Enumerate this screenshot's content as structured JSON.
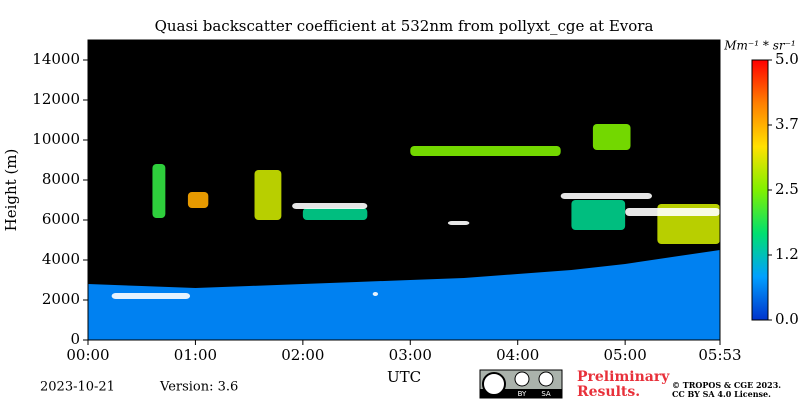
{
  "chart_data": {
    "type": "heatmap",
    "title": "Quasi backscatter coefficient at 532nm from pollyxt_cge at Evora",
    "ylabel": "Height (m)",
    "xlabel": "UTC",
    "xlim": [
      0,
      5.883
    ],
    "xticks": [
      {
        "value": 0,
        "label": "00:00"
      },
      {
        "value": 1,
        "label": "01:00"
      },
      {
        "value": 2,
        "label": "02:00"
      },
      {
        "value": 3,
        "label": "03:00"
      },
      {
        "value": 4,
        "label": "04:00"
      },
      {
        "value": 5,
        "label": "05:00"
      },
      {
        "value": 5.883,
        "label": "05:53"
      }
    ],
    "ylim": [
      0,
      15000
    ],
    "yticks": [
      0,
      2000,
      4000,
      6000,
      8000,
      10000,
      12000,
      14000
    ],
    "background": "#000000",
    "colormap": [
      "#0033cc",
      "#00a0ff",
      "#00e070",
      "#80f000",
      "#ffe000",
      "#ff8000",
      "#ff0000"
    ],
    "over_color": "#ffffff",
    "clim": [
      0,
      5
    ],
    "colorbar_label": "Mm⁻¹ * sr⁻¹",
    "colorbar_ticks": [
      {
        "value": 0,
        "label": "0.0"
      },
      {
        "value": 1.25,
        "label": "1.2"
      },
      {
        "value": 2.5,
        "label": "2.5"
      },
      {
        "value": 3.75,
        "label": "3.7"
      },
      {
        "value": 5,
        "label": "5.0"
      }
    ],
    "aerosol_layer": {
      "x": [
        0,
        0.5,
        1,
        1.5,
        2,
        2.5,
        3,
        3.5,
        4,
        4.5,
        5,
        5.5,
        5.883
      ],
      "top": [
        2800,
        2700,
        2600,
        2700,
        2800,
        2900,
        3000,
        3100,
        3300,
        3500,
        3800,
        4200,
        4500
      ],
      "value": 0.6
    },
    "clouds": [
      {
        "x": [
          0.22,
          0.95
        ],
        "y": [
          2050,
          2350
        ],
        "value": 6
      },
      {
        "x": [
          0.6,
          0.72
        ],
        "y": [
          6100,
          8800
        ],
        "value": 2
      },
      {
        "x": [
          0.93,
          1.12
        ],
        "y": [
          6600,
          7400
        ],
        "value": 3.8
      },
      {
        "x": [
          1.55,
          1.8
        ],
        "y": [
          6000,
          8500
        ],
        "value": 3
      },
      {
        "x": [
          2.0,
          2.6
        ],
        "y": [
          6000,
          6600
        ],
        "value": 1.5
      },
      {
        "x": [
          1.9,
          2.6
        ],
        "y": [
          6550,
          6850
        ],
        "value": 6
      },
      {
        "x": [
          2.65,
          2.7
        ],
        "y": [
          2200,
          2400
        ],
        "value": 6
      },
      {
        "x": [
          3.35,
          3.55
        ],
        "y": [
          5750,
          5950
        ],
        "value": 6
      },
      {
        "x": [
          3.0,
          4.4
        ],
        "y": [
          9200,
          9700
        ],
        "value": 2.5
      },
      {
        "x": [
          4.5,
          5.0
        ],
        "y": [
          5500,
          7000
        ],
        "value": 1.5
      },
      {
        "x": [
          4.4,
          5.25
        ],
        "y": [
          7050,
          7350
        ],
        "value": 6
      },
      {
        "x": [
          4.7,
          5.05
        ],
        "y": [
          9500,
          10800
        ],
        "value": 2.5
      },
      {
        "x": [
          5.3,
          5.883
        ],
        "y": [
          4800,
          6800
        ],
        "value": 3
      },
      {
        "x": [
          5.0,
          5.883
        ],
        "y": [
          6200,
          6600
        ],
        "value": 6
      }
    ]
  },
  "footer": {
    "date": "2023-10-21",
    "version": "Version: 3.6",
    "notice": [
      "Preliminary",
      "Results."
    ],
    "copyright": [
      "© TROPOS & CGE 2023.",
      "CC BY SA 4.0 License."
    ],
    "license_badge": [
      "BY",
      "SA"
    ]
  }
}
